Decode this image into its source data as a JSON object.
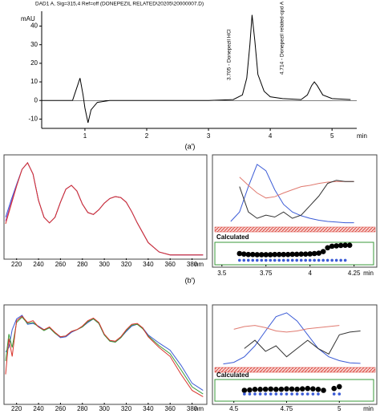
{
  "chart_data": [
    {
      "type": "line",
      "title": "DAD1 A, Sig=315,4 Ref=off (DONEPEZIL RELATED\\20205\\20000007.D)",
      "ylabel": "mAU",
      "xlabel": "min",
      "caption": "(a′)",
      "peak_labels": [
        "3.705 - Donepezil HCl",
        "4.714 - Donepezil related-cpd A"
      ],
      "xlim": [
        0.3,
        5.4
      ],
      "xticks": [
        1,
        2,
        3,
        4,
        5
      ],
      "ylim": [
        -15,
        48
      ],
      "yticks": [
        -10,
        0,
        10,
        20,
        30,
        40
      ],
      "x": [
        0.3,
        0.8,
        0.88,
        0.92,
        0.97,
        1.0,
        1.05,
        1.1,
        1.2,
        1.4,
        2,
        3,
        3.4,
        3.55,
        3.62,
        3.67,
        3.705,
        3.75,
        3.8,
        3.9,
        4.0,
        4.2,
        4.5,
        4.6,
        4.67,
        4.714,
        4.76,
        4.85,
        5.0,
        5.3
      ],
      "series": [
        {
          "color": "#000000",
          "values": [
            0,
            0,
            8,
            12,
            3,
            -4,
            -12,
            -5,
            -1,
            0,
            0,
            0,
            0.5,
            3,
            12,
            30,
            46,
            32,
            14,
            5,
            2,
            1,
            0.5,
            3,
            8,
            10,
            8,
            3,
            1,
            0.5
          ]
        }
      ]
    },
    {
      "type": "line",
      "xlabel": "nm",
      "caption": "(b′)",
      "xlim": [
        210,
        392
      ],
      "xticks": [
        220,
        240,
        260,
        280,
        300,
        320,
        340,
        360,
        380
      ],
      "ylim": [
        0,
        1.05
      ],
      "x": [
        210,
        215,
        220,
        225,
        230,
        235,
        240,
        245,
        250,
        255,
        260,
        265,
        270,
        275,
        280,
        285,
        290,
        295,
        300,
        305,
        310,
        315,
        320,
        325,
        330,
        340,
        350,
        360,
        370,
        380,
        390
      ],
      "series": [
        {
          "color": "#3b5bd6",
          "values": [
            0.42,
            0.6,
            0.77,
            0.93,
            1.0,
            0.88,
            0.6,
            0.42,
            0.36,
            0.42,
            0.58,
            0.72,
            0.76,
            0.7,
            0.56,
            0.47,
            0.45,
            0.5,
            0.57,
            0.62,
            0.64,
            0.63,
            0.58,
            0.48,
            0.36,
            0.15,
            0.05,
            0.02,
            0.02,
            0.02,
            0.02
          ]
        },
        {
          "color": "#9b3fb5",
          "values": [
            0.38,
            0.57,
            0.76,
            0.93,
            1.0,
            0.88,
            0.6,
            0.42,
            0.36,
            0.42,
            0.58,
            0.72,
            0.76,
            0.7,
            0.56,
            0.47,
            0.45,
            0.5,
            0.57,
            0.62,
            0.64,
            0.63,
            0.58,
            0.48,
            0.36,
            0.15,
            0.05,
            0.02,
            0.02,
            0.02,
            0.02
          ]
        },
        {
          "color": "#d9332b",
          "values": [
            0.35,
            0.55,
            0.75,
            0.93,
            1.0,
            0.88,
            0.6,
            0.42,
            0.36,
            0.42,
            0.58,
            0.72,
            0.76,
            0.7,
            0.56,
            0.47,
            0.45,
            0.5,
            0.57,
            0.62,
            0.64,
            0.63,
            0.58,
            0.48,
            0.36,
            0.15,
            0.05,
            0.02,
            0.02,
            0.02,
            0.02
          ]
        }
      ]
    },
    {
      "type": "line",
      "xlim": [
        3.46,
        4.37
      ],
      "ylim": [
        0,
        1.05
      ],
      "x": [
        3.55,
        3.6,
        3.65,
        3.7,
        3.75,
        3.8,
        3.85,
        3.9,
        3.95,
        4.0,
        4.05,
        4.1,
        4.15,
        4.2,
        4.25
      ],
      "series": [
        {
          "color": "#3b5bd6",
          "values": [
            0.05,
            0.2,
            0.6,
            0.95,
            0.85,
            0.55,
            0.32,
            0.2,
            0.14,
            0.1,
            0.07,
            0.05,
            0.04,
            0.03,
            0.03
          ]
        },
        {
          "color": "#e07a70",
          "values": [
            null,
            0.75,
            0.62,
            0.5,
            0.42,
            0.44,
            0.5,
            0.55,
            0.6,
            0.62,
            0.65,
            0.67,
            0.68,
            0.68,
            0.68
          ]
        },
        {
          "color": "#333333",
          "values": [
            null,
            0.6,
            0.2,
            0.1,
            0.15,
            0.12,
            0.2,
            0.1,
            0.15,
            0.3,
            0.45,
            0.65,
            0.7,
            0.68,
            0.68
          ]
        }
      ]
    },
    {
      "type": "scatter",
      "title": "Calculated",
      "xlabel": "min",
      "xlim": [
        3.46,
        4.37
      ],
      "xticks": [
        3.5,
        3.75,
        4,
        4.25
      ],
      "ylim": [
        0,
        1
      ],
      "x": [
        3.6,
        3.625,
        3.65,
        3.675,
        3.7,
        3.725,
        3.75,
        3.775,
        3.8,
        3.825,
        3.85,
        3.875,
        3.9,
        3.925,
        3.95,
        3.975,
        4.0,
        4.025,
        4.05,
        4.075,
        4.1,
        4.125,
        4.15,
        4.175,
        4.2,
        4.225
      ],
      "series": [
        {
          "color": "#000000",
          "values": [
            0.5,
            0.47,
            0.45,
            0.45,
            0.44,
            0.44,
            0.44,
            0.44,
            0.45,
            0.45,
            0.45,
            0.45,
            0.46,
            0.46,
            0.47,
            0.47,
            0.48,
            0.5,
            0.52,
            0.6,
            0.8,
            0.88,
            0.9,
            0.92,
            0.93,
            0.93
          ]
        },
        {
          "color": "#3b5bd6",
          "values": [
            0.15,
            0.15,
            0.15,
            0.15,
            0.15,
            0.15,
            0.15,
            0.15,
            0.15,
            0.15,
            0.15,
            0.15,
            0.15,
            0.15,
            0.15,
            0.15,
            0.15,
            0.15,
            0.15,
            0.15,
            0.15,
            0.15,
            0.15,
            0.15,
            0.15,
            null
          ]
        }
      ]
    },
    {
      "type": "line",
      "xlabel": "nm",
      "xlim": [
        210,
        392
      ],
      "xticks": [
        220,
        240,
        260,
        280,
        300,
        320,
        340,
        360,
        380
      ],
      "ylim": [
        0,
        1.05
      ],
      "x": [
        210,
        213,
        216,
        220,
        225,
        230,
        235,
        240,
        245,
        250,
        255,
        260,
        265,
        270,
        275,
        280,
        285,
        290,
        295,
        300,
        305,
        310,
        315,
        320,
        325,
        330,
        335,
        340,
        350,
        360,
        370,
        380,
        390
      ],
      "series": [
        {
          "color": "#3b5bd6",
          "values": [
            0.55,
            0.6,
            0.8,
            0.92,
            0.96,
            0.86,
            0.87,
            0.84,
            0.8,
            0.82,
            0.76,
            0.71,
            0.72,
            0.77,
            0.8,
            0.83,
            0.88,
            0.92,
            0.87,
            0.74,
            0.68,
            0.66,
            0.71,
            0.78,
            0.84,
            0.86,
            0.82,
            0.74,
            0.65,
            0.57,
            0.4,
            0.2,
            0.12
          ]
        },
        {
          "color": "#3a9a3a",
          "values": [
            0.45,
            0.75,
            0.6,
            0.88,
            0.94,
            0.87,
            0.88,
            0.83,
            0.79,
            0.82,
            0.76,
            0.72,
            0.73,
            0.78,
            0.8,
            0.83,
            0.89,
            0.92,
            0.87,
            0.74,
            0.67,
            0.66,
            0.71,
            0.79,
            0.85,
            0.86,
            0.81,
            0.73,
            0.62,
            0.53,
            0.35,
            0.16,
            0.08
          ]
        },
        {
          "color": "#d9332b",
          "values": [
            0.3,
            0.7,
            0.5,
            0.9,
            0.95,
            0.88,
            0.9,
            0.83,
            0.8,
            0.83,
            0.77,
            0.72,
            0.73,
            0.78,
            0.8,
            0.84,
            0.9,
            0.93,
            0.88,
            0.75,
            0.68,
            0.67,
            0.72,
            0.8,
            0.86,
            0.87,
            0.82,
            0.72,
            0.6,
            0.5,
            0.3,
            0.12,
            0.05
          ]
        }
      ]
    },
    {
      "type": "line",
      "xlim": [
        4.41,
        5.17
      ],
      "ylim": [
        0,
        1.05
      ],
      "x": [
        4.45,
        4.5,
        4.55,
        4.6,
        4.65,
        4.7,
        4.75,
        4.8,
        4.85,
        4.9,
        4.95,
        5.0,
        5.05,
        5.1
      ],
      "series": [
        {
          "color": "#3b5bd6",
          "values": [
            0.02,
            0.05,
            0.15,
            0.35,
            0.62,
            0.88,
            0.95,
            0.8,
            0.55,
            0.3,
            0.15,
            0.08,
            0.04,
            0.03
          ]
        },
        {
          "color": "#e07a70",
          "values": [
            null,
            0.65,
            0.7,
            0.72,
            0.68,
            0.62,
            0.6,
            0.62,
            0.66,
            0.68,
            0.7,
            0.72,
            null,
            null
          ]
        },
        {
          "color": "#333333",
          "values": [
            null,
            null,
            0.3,
            0.45,
            0.25,
            0.35,
            0.15,
            0.3,
            0.45,
            0.3,
            0.2,
            0.55,
            0.6,
            0.62
          ]
        }
      ]
    },
    {
      "type": "scatter",
      "title": "Calculated",
      "xlabel": "min",
      "xlim": [
        4.41,
        5.17
      ],
      "xticks": [
        4.5,
        4.75,
        5
      ],
      "ylim": [
        0,
        1
      ],
      "x": [
        4.55,
        4.575,
        4.6,
        4.625,
        4.65,
        4.675,
        4.7,
        4.725,
        4.75,
        4.775,
        4.8,
        4.825,
        4.85,
        4.875,
        4.9,
        4.925,
        4.95,
        4.975,
        5.0
      ],
      "series": [
        {
          "color": "#000000",
          "values": [
            0.5,
            0.52,
            0.55,
            0.55,
            0.56,
            0.57,
            0.55,
            0.56,
            0.58,
            0.57,
            0.56,
            0.58,
            0.6,
            0.58,
            0.55,
            0.5,
            null,
            0.6,
            0.7
          ]
        },
        {
          "color": "#3b5bd6",
          "values": [
            0.3,
            0.3,
            0.3,
            0.3,
            0.3,
            0.3,
            0.3,
            0.3,
            0.3,
            0.3,
            0.3,
            0.3,
            0.3,
            0.3,
            0.3,
            null,
            null,
            0.3,
            0.3
          ]
        }
      ]
    }
  ]
}
